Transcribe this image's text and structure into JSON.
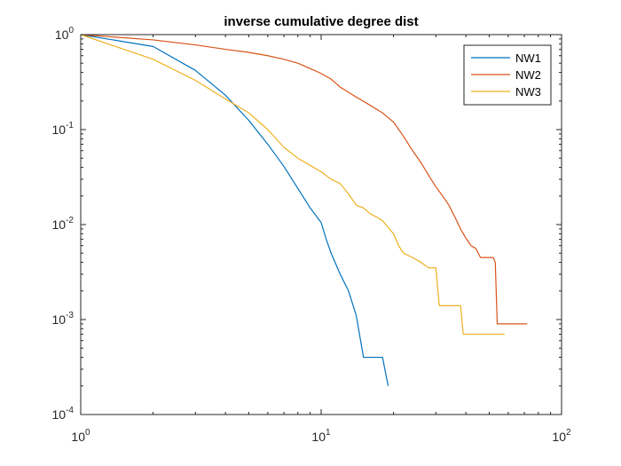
{
  "chart_data": {
    "type": "line",
    "title": "inverse cumulative degree dist",
    "xlabel": "",
    "ylabel": "",
    "xscale": "log",
    "yscale": "log",
    "xlim": [
      1,
      100
    ],
    "ylim": [
      0.0001,
      1
    ],
    "grid": false,
    "legend_position": "top-right",
    "x_ticks": [
      {
        "value": 1,
        "base": "10",
        "exp": "0"
      },
      {
        "value": 10,
        "base": "10",
        "exp": "1"
      },
      {
        "value": 100,
        "base": "10",
        "exp": "2"
      }
    ],
    "y_ticks": [
      {
        "value": 1,
        "base": "10",
        "exp": "0"
      },
      {
        "value": 0.1,
        "base": "10",
        "exp": "-1"
      },
      {
        "value": 0.01,
        "base": "10",
        "exp": "-2"
      },
      {
        "value": 0.001,
        "base": "10",
        "exp": "-3"
      },
      {
        "value": 0.0001,
        "base": "10",
        "exp": "-4"
      }
    ],
    "series": [
      {
        "name": "NW1",
        "color": "#0072BD",
        "points": [
          [
            1,
            1
          ],
          [
            2,
            0.75
          ],
          [
            3,
            0.42
          ],
          [
            4,
            0.23
          ],
          [
            5,
            0.125
          ],
          [
            6,
            0.07
          ],
          [
            7,
            0.041
          ],
          [
            8,
            0.024
          ],
          [
            9,
            0.015
          ],
          [
            10,
            0.0105
          ],
          [
            10.5,
            0.007
          ],
          [
            11,
            0.005
          ],
          [
            12,
            0.003
          ],
          [
            13,
            0.002
          ],
          [
            14,
            0.0011
          ],
          [
            15,
            0.0004
          ],
          [
            17,
            0.0004
          ],
          [
            18,
            0.0004
          ],
          [
            19,
            0.0002
          ]
        ]
      },
      {
        "name": "NW2",
        "color": "#D95319",
        "points": [
          [
            1,
            1
          ],
          [
            2,
            0.88
          ],
          [
            3,
            0.78
          ],
          [
            4,
            0.7
          ],
          [
            5,
            0.65
          ],
          [
            6,
            0.6
          ],
          [
            7,
            0.55
          ],
          [
            8,
            0.5
          ],
          [
            9,
            0.44
          ],
          [
            10,
            0.39
          ],
          [
            11,
            0.34
          ],
          [
            12,
            0.28
          ],
          [
            14,
            0.22
          ],
          [
            16,
            0.18
          ],
          [
            18,
            0.15
          ],
          [
            20,
            0.12
          ],
          [
            22,
            0.085
          ],
          [
            24,
            0.06
          ],
          [
            26,
            0.045
          ],
          [
            28,
            0.033
          ],
          [
            30,
            0.025
          ],
          [
            32,
            0.02
          ],
          [
            34,
            0.016
          ],
          [
            36,
            0.012
          ],
          [
            38,
            0.009
          ],
          [
            40,
            0.0072
          ],
          [
            42,
            0.006
          ],
          [
            44,
            0.0056
          ],
          [
            46,
            0.0045
          ],
          [
            48,
            0.0045
          ],
          [
            50,
            0.0045
          ],
          [
            52,
            0.0045
          ],
          [
            53,
            0.004
          ],
          [
            54,
            0.0009
          ],
          [
            60,
            0.0009
          ],
          [
            72,
            0.0009
          ]
        ]
      },
      {
        "name": "NW3",
        "color": "#EDB120",
        "points": [
          [
            1,
            1
          ],
          [
            2,
            0.55
          ],
          [
            3,
            0.33
          ],
          [
            4,
            0.21
          ],
          [
            5,
            0.15
          ],
          [
            6,
            0.1
          ],
          [
            7,
            0.065
          ],
          [
            8,
            0.05
          ],
          [
            9,
            0.042
          ],
          [
            10,
            0.036
          ],
          [
            11,
            0.03
          ],
          [
            12,
            0.027
          ],
          [
            13,
            0.021
          ],
          [
            14,
            0.016
          ],
          [
            15,
            0.015
          ],
          [
            16,
            0.013
          ],
          [
            17,
            0.012
          ],
          [
            18,
            0.011
          ],
          [
            20,
            0.008
          ],
          [
            21,
            0.006
          ],
          [
            22,
            0.005
          ],
          [
            24,
            0.0045
          ],
          [
            26,
            0.004
          ],
          [
            28,
            0.0035
          ],
          [
            30,
            0.0035
          ],
          [
            31,
            0.0014
          ],
          [
            38,
            0.0014
          ],
          [
            39,
            0.0007
          ],
          [
            58,
            0.0007
          ]
        ]
      }
    ]
  }
}
